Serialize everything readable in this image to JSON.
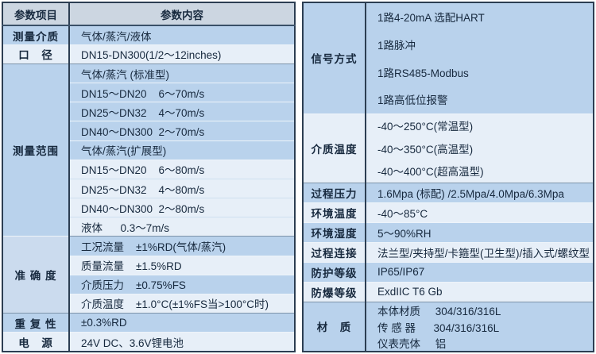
{
  "colors": {
    "outer_border": "#2c3e52",
    "header_bg": "#ccd6e1",
    "row_blue": "#b9d2ec",
    "row_light": "#e7eff8",
    "accuracy_label_bg": "#cbdbee",
    "text": "#17293e"
  },
  "left": {
    "header": {
      "c1": "参数项目",
      "c2": "参数内容"
    },
    "rows": [
      {
        "label": "测量介质",
        "content": "气体/蒸汽/液体"
      },
      {
        "label": "口　径",
        "content": "DN15-DN300(1/2～12inches)"
      },
      {
        "label": "测量范围",
        "content": "气体/蒸汽 (标准型)"
      },
      {
        "content": "DN15～DN20    6～70m/s"
      },
      {
        "content": "DN25～DN32    4～70m/s"
      },
      {
        "content": "DN40～DN300  2～70m/s"
      },
      {
        "content": "气体/蒸汽(扩展型)"
      },
      {
        "content": "DN15～DN20    6～80m/s"
      },
      {
        "content": "DN25～DN32    4～80m/s"
      },
      {
        "content": "DN40～DN300  2～80m/s"
      },
      {
        "content": "液体      0.3～7m/s"
      },
      {
        "label": "准 确 度",
        "content": "工况流量    ±1%RD(气体/蒸汽)"
      },
      {
        "content": "质量流量    ±1.5%RD"
      },
      {
        "content": "介质压力    ±0.75%FS"
      },
      {
        "content": "介质温度    ±1.0°C(±1%FS当>100°C时)"
      },
      {
        "label": "重 复 性",
        "content": "±0.3%RD"
      },
      {
        "label": "电　源",
        "content": "24V DC、3.6V锂电池"
      }
    ]
  },
  "right": {
    "rows": [
      {
        "label": "信号方式",
        "content": "1路4-20mA 选配HART"
      },
      {
        "content": "1路脉冲"
      },
      {
        "content": "1路RS485-Modbus"
      },
      {
        "content": "1路高低位报警"
      },
      {
        "label": "介质温度",
        "content": "-40～250°C(常温型)"
      },
      {
        "content": "-40～350°C(高温型)"
      },
      {
        "content": "-40～400°C(超高温型)"
      },
      {
        "label": "过程压力",
        "content": "1.6Mpa (标配) /2.5Mpa/4.0Mpa/6.3Mpa"
      },
      {
        "label": "环境温度",
        "content": "-40～85°C"
      },
      {
        "label": "环境湿度",
        "content": "5～90%RH"
      },
      {
        "label": "过程连接",
        "content": "法兰型/夹持型/卡箍型(卫生型)/插入式/螺纹型"
      },
      {
        "label": "防护等级",
        "content": "IP65/IP67"
      },
      {
        "label": "防爆等级",
        "content": "ExdIIC T6 Gb"
      },
      {
        "label": "材　质",
        "content": "本体材质     304/316/316L"
      },
      {
        "content": "传 感 器      304/316/316L"
      },
      {
        "content": "仪表壳体     铝"
      }
    ]
  }
}
